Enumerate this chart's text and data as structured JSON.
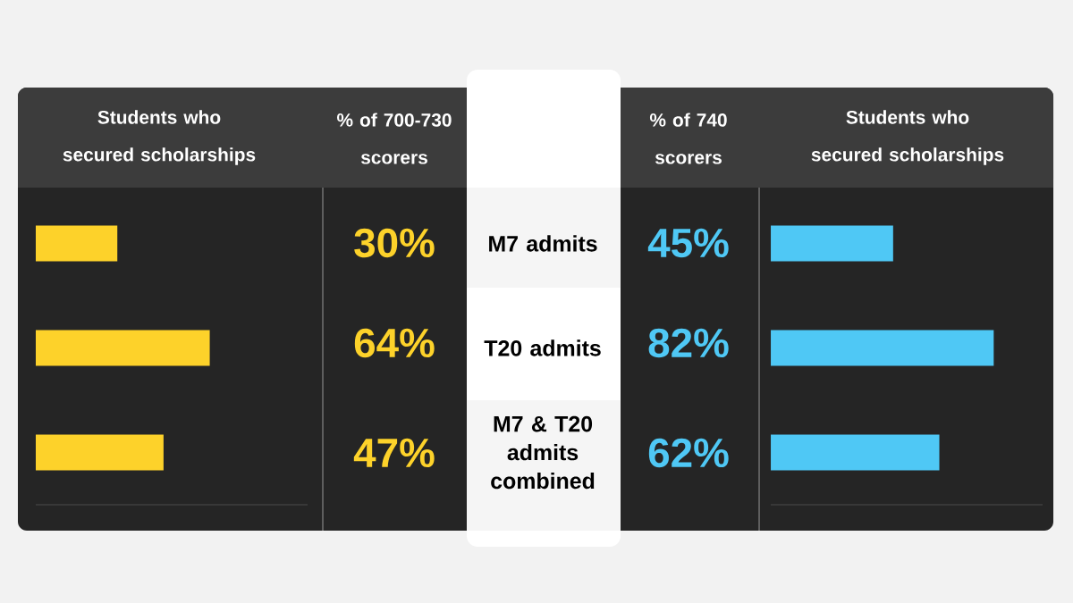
{
  "chart_data": [
    {
      "type": "bar",
      "orientation": "horizontal",
      "title": "Students who secured scholarships",
      "categories": [
        "M7 admits",
        "T20 admits",
        "M7 & T20 admits combined"
      ],
      "series": [
        {
          "name": "% of 700-730 scorers",
          "color": "#fdd22a",
          "values": [
            30,
            64,
            47
          ],
          "value_labels": [
            "30%",
            "64%",
            "47%"
          ]
        }
      ],
      "xlim": [
        0,
        100
      ],
      "tick_labels": "y"
    },
    {
      "type": "bar",
      "orientation": "horizontal",
      "title": "Students who secured scholarships",
      "categories": [
        null,
        null,
        null
      ],
      "series": [
        {
          "name": "% of 740 scorers",
          "color": "#4fc8f5",
          "values": [
            45,
            82,
            62
          ],
          "value_labels": [
            "45%",
            "82%",
            "62%"
          ]
        }
      ],
      "xlim": [
        0,
        100
      ],
      "tick_labels": false
    }
  ]
}
